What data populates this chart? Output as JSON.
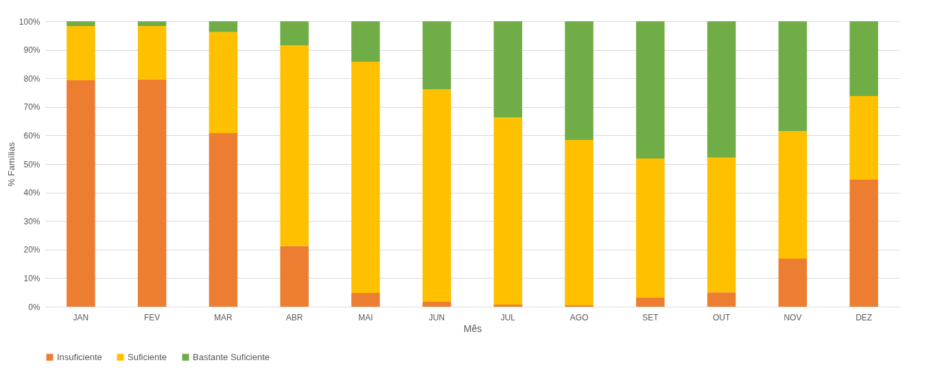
{
  "chart_data": {
    "type": "bar",
    "stacked": true,
    "xlabel": "Mês",
    "ylabel": "% Famílias",
    "categories": [
      "JAN",
      "FEV",
      "MAR",
      "ABR",
      "MAI",
      "JUN",
      "JUL",
      "AGO",
      "SET",
      "OUT",
      "NOV",
      "DEZ"
    ],
    "series": [
      {
        "name": "Insuficiente",
        "color": "#ed7d31",
        "values": [
          79.3,
          79.6,
          60.8,
          21.2,
          4.8,
          1.7,
          0.7,
          0.5,
          3.1,
          5.0,
          16.8,
          44.5
        ]
      },
      {
        "name": "Suficiente",
        "color": "#ffc000",
        "values": [
          19.0,
          18.7,
          35.4,
          70.4,
          81.0,
          74.5,
          65.6,
          57.9,
          48.8,
          47.2,
          44.7,
          29.3
        ]
      },
      {
        "name": "Bastante Suficiente",
        "color": "#70ad47",
        "values": [
          1.7,
          1.7,
          3.8,
          8.4,
          14.2,
          23.8,
          33.7,
          41.6,
          48.1,
          47.8,
          38.5,
          26.2
        ]
      }
    ],
    "ylim": [
      0,
      100
    ],
    "yticks": [
      {
        "value": 0,
        "label": "0%"
      },
      {
        "value": 10,
        "label": "10%"
      },
      {
        "value": 20,
        "label": "20%"
      },
      {
        "value": 30,
        "label": "30%"
      },
      {
        "value": 40,
        "label": "40%"
      },
      {
        "value": 50,
        "label": "50%"
      },
      {
        "value": 60,
        "label": "60%"
      },
      {
        "value": 70,
        "label": "70%"
      },
      {
        "value": 80,
        "label": "80%"
      },
      {
        "value": 90,
        "label": "90%"
      },
      {
        "value": 100,
        "label": "100%"
      }
    ],
    "grid": "y",
    "legend": "bottom"
  }
}
